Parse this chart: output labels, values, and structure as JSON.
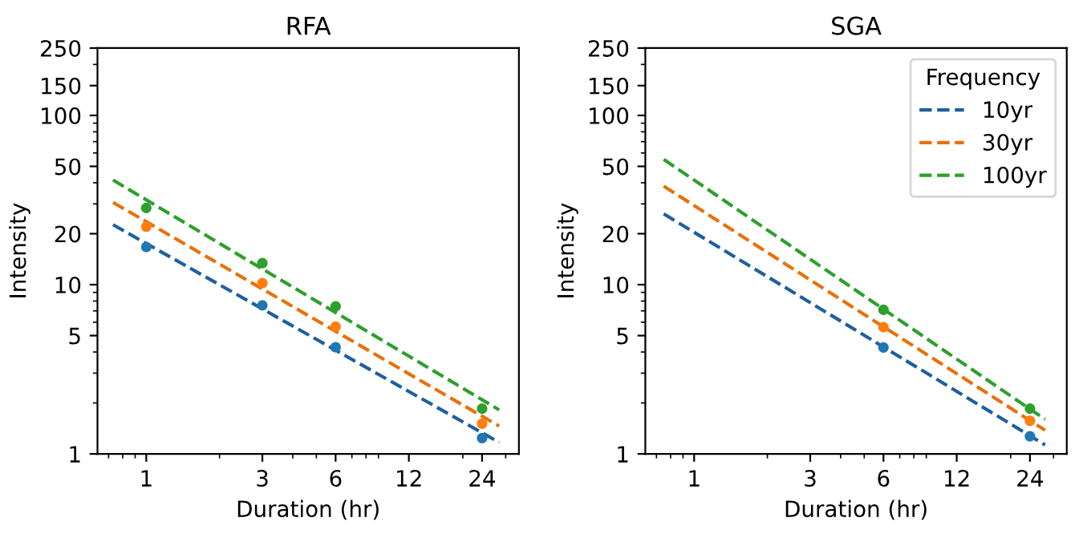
{
  "chart_data": [
    {
      "type": "line",
      "title": "RFA",
      "xlabel": "Duration (hr)",
      "ylabel": "Intensity",
      "log": "xy",
      "grid": false,
      "legend": false,
      "xlim": [
        0.63,
        34
      ],
      "xticks": [
        1,
        3,
        6,
        12,
        24
      ],
      "ylim": [
        1,
        250
      ],
      "yticks": [
        1,
        5,
        10,
        20,
        50,
        100,
        150,
        250
      ],
      "series": [
        {
          "color": "#1f5f9e",
          "line_style": "dashed",
          "marker": "none",
          "x": [
            0.73,
            28.2
          ],
          "values": [
            22.6,
            1.17
          ]
        },
        {
          "color": "#e8710a",
          "line_style": "dashed",
          "marker": "none",
          "x": [
            0.73,
            28.2
          ],
          "values": [
            30.6,
            1.46
          ]
        },
        {
          "color": "#2ca02c",
          "line_style": "dashed",
          "marker": "none",
          "x": [
            0.73,
            28.2
          ],
          "values": [
            41.5,
            1.82
          ]
        },
        {
          "type": "scatter",
          "color": "#1f77b4",
          "marker": "circle",
          "x": [
            1,
            3,
            6,
            24
          ],
          "values": [
            16.7,
            7.55,
            4.27,
            1.24
          ]
        },
        {
          "type": "scatter",
          "color": "#ff7f0e",
          "marker": "circle",
          "x": [
            1,
            3,
            6,
            24
          ],
          "values": [
            22.0,
            10.2,
            5.65,
            1.51
          ]
        },
        {
          "type": "scatter",
          "color": "#2ca02c",
          "marker": "circle",
          "x": [
            1,
            3,
            6,
            24
          ],
          "values": [
            28.4,
            13.4,
            7.44,
            1.85
          ]
        }
      ]
    },
    {
      "type": "line",
      "title": "SGA",
      "xlabel": "Duration (hr)",
      "ylabel": "Intensity",
      "log": "xy",
      "grid": false,
      "legend": "top right",
      "legend_title": "Frequency",
      "xlim": [
        0.63,
        34
      ],
      "xticks": [
        1,
        3,
        6,
        12,
        24
      ],
      "ylim": [
        1,
        250
      ],
      "yticks": [
        1,
        5,
        10,
        20,
        50,
        100,
        150,
        250
      ],
      "series": [
        {
          "name": "10yr",
          "color": "#1f5f9e",
          "line_style": "dashed",
          "marker": "none",
          "x": [
            0.75,
            27.7
          ],
          "values": [
            26.2,
            1.13
          ]
        },
        {
          "name": "30yr",
          "color": "#e8710a",
          "line_style": "dashed",
          "marker": "none",
          "x": [
            0.75,
            27.7
          ],
          "values": [
            38.2,
            1.38
          ]
        },
        {
          "name": "100yr",
          "color": "#2ca02c",
          "line_style": "dashed",
          "marker": "none",
          "x": [
            0.75,
            27.7
          ],
          "values": [
            55,
            1.6
          ]
        },
        {
          "type": "scatter",
          "color": "#1f77b4",
          "marker": "circle",
          "x": [
            6,
            24
          ],
          "values": [
            4.25,
            1.27
          ]
        },
        {
          "type": "scatter",
          "color": "#ff7f0e",
          "marker": "circle",
          "x": [
            6,
            24
          ],
          "values": [
            5.61,
            1.57
          ]
        },
        {
          "type": "scatter",
          "color": "#2ca02c",
          "marker": "circle",
          "x": [
            6,
            24
          ],
          "values": [
            7.1,
            1.85
          ]
        }
      ]
    }
  ]
}
